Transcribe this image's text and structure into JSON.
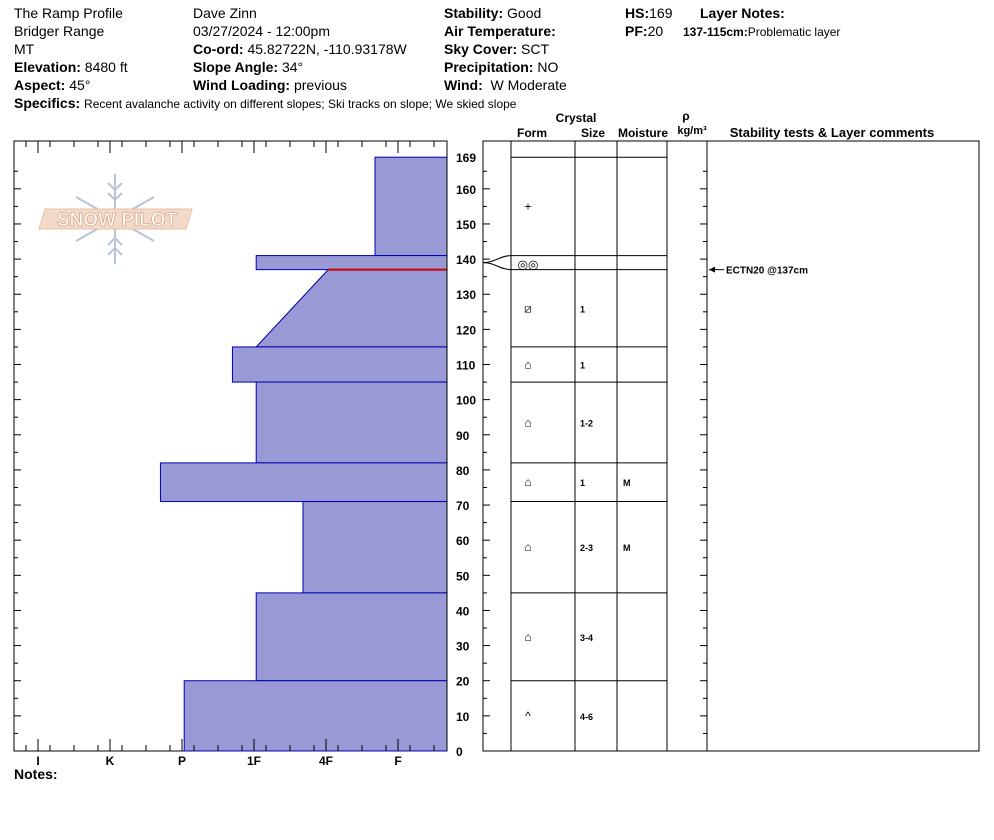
{
  "header": {
    "title": "The Ramp Profile",
    "range": "Bridger Range",
    "state": "MT",
    "elevation_label": "Elevation:",
    "elevation": "8480 ft",
    "aspect_label": "Aspect:",
    "aspect": "45°",
    "observer": "Dave Zinn",
    "datetime": "03/27/2024 - 12:00pm",
    "coord_label": "Co-ord:",
    "coord": "45.82722N, -110.93178W",
    "slope_label": "Slope Angle:",
    "slope": "34°",
    "wind_loading_label": "Wind Loading:",
    "wind_loading": "previous",
    "stability_label": "Stability:",
    "stability": "Good",
    "air_temp_label": "Air Temperature:",
    "sky_label": "Sky Cover:",
    "sky": "SCT",
    "precip_label": "Precipitation:",
    "precip": "NO",
    "wind_label": "Wind:",
    "wind": "W Moderate",
    "hs_label": "HS:",
    "hs": "169",
    "pf_label": "PF:",
    "pf": "20",
    "layer_notes_label": "Layer Notes:",
    "layer_note_range": "137-115cm:",
    "layer_note_text": "Problematic layer",
    "specifics_label": "Specifics:",
    "specifics": "Recent avalanche activity on different slopes; Ski tracks on slope; We skied slope"
  },
  "columns": {
    "crystal": "Crystal",
    "form": "Form",
    "size": "Size",
    "moisture": "Moisture",
    "rho": "ρ",
    "density_unit": "kg/m³",
    "comments": "Stability tests & Layer comments"
  },
  "logo_text": "SNOW PILOT",
  "notes_label": "Notes:",
  "colors": {
    "hardness_fill": "#9999d6",
    "hardness_stroke": "#0000aa",
    "weak_layer": "#cc0000"
  },
  "chart_data": {
    "type": "snow-profile",
    "y_axis": {
      "min": 0,
      "max": 169,
      "ticks": [
        0,
        10,
        20,
        30,
        40,
        50,
        60,
        70,
        80,
        90,
        100,
        110,
        120,
        130,
        140,
        150,
        160,
        169
      ]
    },
    "x_axis": {
      "hardness_scale": [
        "I",
        "K",
        "P",
        "1F",
        "4F",
        "F"
      ]
    },
    "hardness_layers": [
      {
        "top": 169,
        "bottom": 141,
        "hardness_index": 1.0
      },
      {
        "top": 141,
        "bottom": 137,
        "hardness_index": 2.65
      },
      {
        "top": 137,
        "bottom": 115,
        "hardness_index_top": 1.65,
        "hardness_index_bottom": 2.65
      },
      {
        "top": 115,
        "bottom": 105,
        "hardness_index": 2.98
      },
      {
        "top": 105,
        "bottom": 82,
        "hardness_index": 2.65
      },
      {
        "top": 82,
        "bottom": 71,
        "hardness_index": 3.98
      },
      {
        "top": 71,
        "bottom": 45,
        "hardness_index": 2.0
      },
      {
        "top": 45,
        "bottom": 20,
        "hardness_index": 2.65
      },
      {
        "top": 20,
        "bottom": 0,
        "hardness_index": 3.65
      }
    ],
    "weak_layer_line": 137,
    "layers": [
      {
        "top": 169,
        "bottom": 141,
        "form": "+",
        "size": "",
        "moisture": ""
      },
      {
        "top": 141,
        "bottom": 137,
        "form": "◎◎",
        "size": "",
        "moisture": ""
      },
      {
        "top": 137,
        "bottom": 115,
        "form": "⧄",
        "size": "1",
        "moisture": ""
      },
      {
        "top": 115,
        "bottom": 105,
        "form": "⌂",
        "size": "1",
        "moisture": ""
      },
      {
        "top": 105,
        "bottom": 82,
        "form": "⌂",
        "size": "1-2",
        "moisture": ""
      },
      {
        "top": 82,
        "bottom": 71,
        "form": "⌂",
        "size": "1",
        "moisture": "M"
      },
      {
        "top": 71,
        "bottom": 45,
        "form": "⌂",
        "size": "2-3",
        "moisture": "M"
      },
      {
        "top": 45,
        "bottom": 20,
        "form": "⌂",
        "size": "3-4",
        "moisture": ""
      },
      {
        "top": 20,
        "bottom": 0,
        "form": "^",
        "size": "4-6",
        "moisture": ""
      }
    ],
    "tests": [
      {
        "depth": 137,
        "text": "ECTN20 @137cm"
      }
    ]
  }
}
